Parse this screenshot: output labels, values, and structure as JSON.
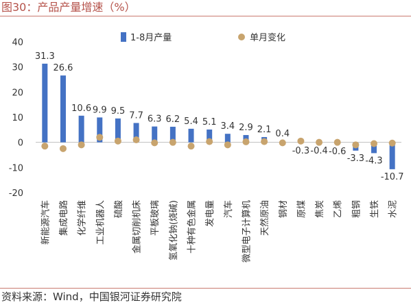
{
  "figure": {
    "title": "图30：产品产量增速（%）",
    "source": "资料来源：Wind，中国银河证券研究院"
  },
  "colors": {
    "bar": "#4472c4",
    "dot": "#c8a46e",
    "title": "#b5524a",
    "rule": "#c9796f"
  },
  "chart_data": {
    "type": "bar",
    "categories": [
      "新能源汽车",
      "集成电路",
      "化学纤维",
      "工业机器人",
      "硫酸",
      "金属切削机床",
      "平板玻璃",
      "氢氧化钠(烧碱)",
      "十种有色金属",
      "发电量",
      "汽车",
      "微型电子计算机",
      "天然原油",
      "钢材",
      "原煤",
      "焦炭",
      "乙烯",
      "粗钢",
      "生铁",
      "水泥"
    ],
    "series": [
      {
        "name": "1-8月产量",
        "kind": "bar",
        "values": [
          31.3,
          26.6,
          10.6,
          9.9,
          9.5,
          7.7,
          6.3,
          6.2,
          5.4,
          5.1,
          3.4,
          2.9,
          2.1,
          0.4,
          -0.3,
          -0.4,
          -0.6,
          -3.3,
          -4.3,
          -10.7
        ],
        "labels": [
          "31.3",
          "26.6",
          "10.6",
          "9.9",
          "9.5",
          "7.7",
          "6.3",
          "6.2",
          "5.4",
          "5.1",
          "3.4",
          "2.9",
          "2.1",
          "0.4",
          "-0.3",
          "-0.4",
          "-0.6",
          "-3.3",
          "-4.3",
          "-10.7"
        ]
      },
      {
        "name": "单月变化",
        "kind": "dot",
        "values": [
          -1.5,
          -2.5,
          -1,
          2,
          0.5,
          1,
          -0.2,
          0,
          -1.5,
          0.3,
          -1,
          0.2,
          0.3,
          -0.2,
          0.5,
          0,
          0,
          -1,
          -0.5,
          -0.3
        ]
      }
    ],
    "yticks": [
      "40",
      "30",
      "20",
      "10",
      "0",
      "-10",
      "-20"
    ],
    "ylim": [
      -20,
      40
    ],
    "legend": "top-right",
    "grid": false
  }
}
